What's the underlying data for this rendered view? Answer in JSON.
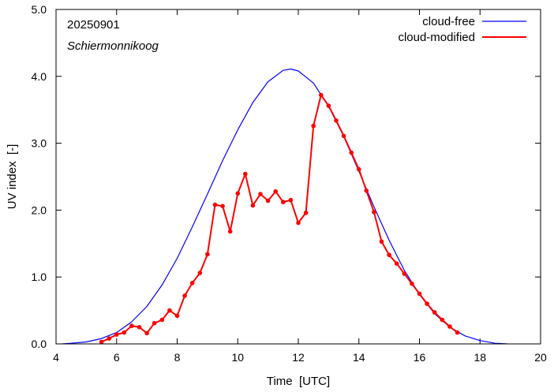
{
  "chart_data": {
    "type": "line",
    "xlabel": "Time  [UTC]",
    "ylabel": "UV index  [-]",
    "xlim": [
      4,
      20
    ],
    "ylim": [
      0,
      5
    ],
    "xticks": [
      4,
      6,
      8,
      10,
      12,
      14,
      16,
      18,
      20
    ],
    "yticks": [
      0,
      1,
      2,
      3,
      4,
      5
    ],
    "xtick_labels": [
      "4",
      "6",
      "8",
      "10",
      "12",
      "14",
      "16",
      "18",
      "20"
    ],
    "ytick_labels": [
      "0.0",
      "1.0",
      "2.0",
      "3.0",
      "4.0",
      "5.0"
    ],
    "annotations": [
      "20250901",
      "Schiermonnikoog"
    ],
    "legend_position": "top-right",
    "series": [
      {
        "name": "cloud-free",
        "color": "#0000ff",
        "marker": "none",
        "x": [
          4.2,
          4.5,
          5.0,
          5.5,
          6.0,
          6.5,
          7.0,
          7.5,
          8.0,
          8.5,
          9.0,
          9.5,
          10.0,
          10.5,
          11.0,
          11.5,
          11.75,
          12.0,
          12.5,
          13.0,
          13.5,
          14.0,
          14.5,
          15.0,
          15.5,
          16.0,
          16.5,
          17.0,
          17.5,
          18.0,
          18.5,
          18.9
        ],
        "y": [
          0.0,
          0.01,
          0.03,
          0.08,
          0.17,
          0.33,
          0.56,
          0.88,
          1.28,
          1.75,
          2.24,
          2.74,
          3.2,
          3.61,
          3.92,
          4.09,
          4.11,
          4.08,
          3.9,
          3.55,
          3.1,
          2.58,
          2.05,
          1.55,
          1.1,
          0.74,
          0.45,
          0.25,
          0.12,
          0.05,
          0.01,
          0.0
        ]
      },
      {
        "name": "cloud-modified",
        "color": "#ff0000",
        "marker": "circle",
        "x": [
          5.5,
          5.75,
          6.0,
          6.25,
          6.5,
          6.75,
          7.0,
          7.25,
          7.5,
          7.75,
          8.0,
          8.25,
          8.5,
          8.75,
          9.0,
          9.25,
          9.5,
          9.75,
          10.0,
          10.25,
          10.5,
          10.75,
          11.0,
          11.25,
          11.5,
          11.75,
          12.0,
          12.25,
          12.5,
          12.75,
          13.0,
          13.25,
          13.5,
          13.75,
          14.0,
          14.25,
          14.5,
          14.75,
          15.0,
          15.25,
          15.5,
          15.75,
          16.0,
          16.25,
          16.5,
          16.75,
          17.0,
          17.25
        ],
        "y": [
          0.03,
          0.08,
          0.14,
          0.17,
          0.27,
          0.25,
          0.16,
          0.31,
          0.36,
          0.5,
          0.42,
          0.72,
          0.91,
          1.06,
          1.34,
          2.08,
          2.06,
          1.68,
          2.25,
          2.54,
          2.07,
          2.24,
          2.14,
          2.28,
          2.12,
          2.15,
          1.81,
          1.96,
          3.26,
          3.72,
          3.56,
          3.34,
          3.11,
          2.86,
          2.61,
          2.29,
          1.97,
          1.53,
          1.33,
          1.2,
          1.05,
          0.9,
          0.75,
          0.6,
          0.47,
          0.36,
          0.26,
          0.17
        ]
      }
    ]
  }
}
